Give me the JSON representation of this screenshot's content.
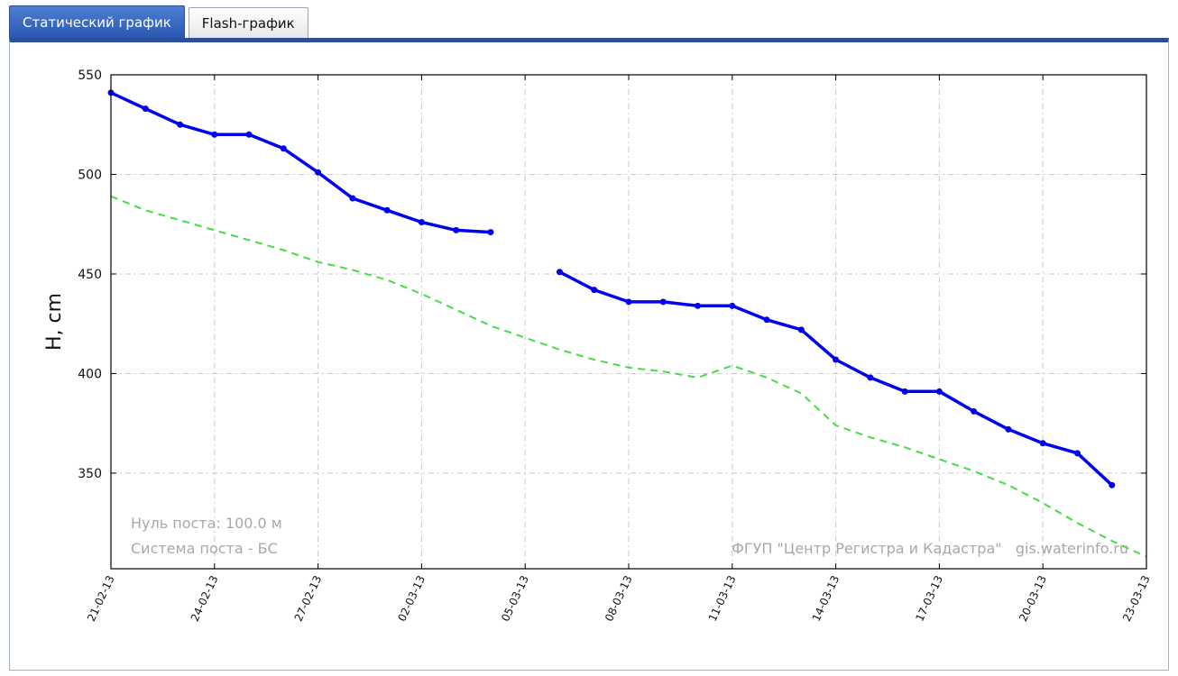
{
  "tabs": [
    {
      "label": "Статический график",
      "active": true
    },
    {
      "label": "Flash-график",
      "active": false
    }
  ],
  "chart_data": {
    "type": "line",
    "xlabel": "",
    "ylabel": "H, cm",
    "ylim": [
      302,
      550
    ],
    "yticks": [
      350,
      400,
      450,
      500,
      550
    ],
    "xticks": [
      "21-02-13",
      "24-02-13",
      "27-02-13",
      "02-03-13",
      "05-03-13",
      "08-03-13",
      "11-03-13",
      "14-03-13",
      "17-03-13",
      "20-03-13",
      "23-03-13"
    ],
    "grid": true,
    "series": [
      {
        "style": "solid-markers",
        "color": "#0000ee",
        "x": [
          "21-02-13",
          "22-02-13",
          "23-02-13",
          "24-02-13",
          "25-02-13",
          "26-02-13",
          "27-02-13",
          "28-02-13",
          "01-03-13",
          "02-03-13",
          "03-03-13",
          "04-03-13"
        ],
        "values": [
          541,
          533,
          525,
          520,
          520,
          513,
          501,
          488,
          482,
          476,
          472,
          471
        ]
      },
      {
        "style": "solid-markers",
        "color": "#0000ee",
        "x": [
          "06-03-13",
          "07-03-13",
          "08-03-13",
          "09-03-13",
          "10-03-13",
          "11-03-13",
          "12-03-13",
          "13-03-13",
          "14-03-13",
          "15-03-13",
          "16-03-13",
          "17-03-13",
          "18-03-13",
          "19-03-13",
          "20-03-13",
          "21-03-13",
          "22-03-13"
        ],
        "values": [
          451,
          442,
          436,
          436,
          434,
          434,
          427,
          422,
          407,
          398,
          391,
          391,
          381,
          372,
          365,
          360,
          344
        ]
      },
      {
        "style": "dashed",
        "color": "#44dd44",
        "x": [
          "21-02-13",
          "22-02-13",
          "23-02-13",
          "24-02-13",
          "25-02-13",
          "26-02-13",
          "27-02-13",
          "28-02-13",
          "01-03-13",
          "02-03-13",
          "03-03-13",
          "04-03-13",
          "05-03-13",
          "06-03-13",
          "07-03-13",
          "08-03-13",
          "09-03-13",
          "10-03-13",
          "11-03-13",
          "12-03-13",
          "13-03-13",
          "14-03-13",
          "15-03-13",
          "16-03-13",
          "17-03-13",
          "18-03-13",
          "19-03-13",
          "20-03-13",
          "21-03-13",
          "22-03-13",
          "23-03-13"
        ],
        "values": [
          489,
          482,
          477,
          472,
          467,
          462,
          456,
          452,
          447,
          440,
          432,
          424,
          418,
          412,
          407,
          403,
          401,
          398,
          404,
          398,
          390,
          374,
          368,
          363,
          357,
          351,
          344,
          335,
          325,
          316,
          308
        ]
      }
    ],
    "annotations": [
      "Нуль поста: 100.0 м",
      "Система поста - БС",
      "ФГУП \"Центр Регистра и Кадастра\"   gis.waterinfo.ru"
    ]
  }
}
